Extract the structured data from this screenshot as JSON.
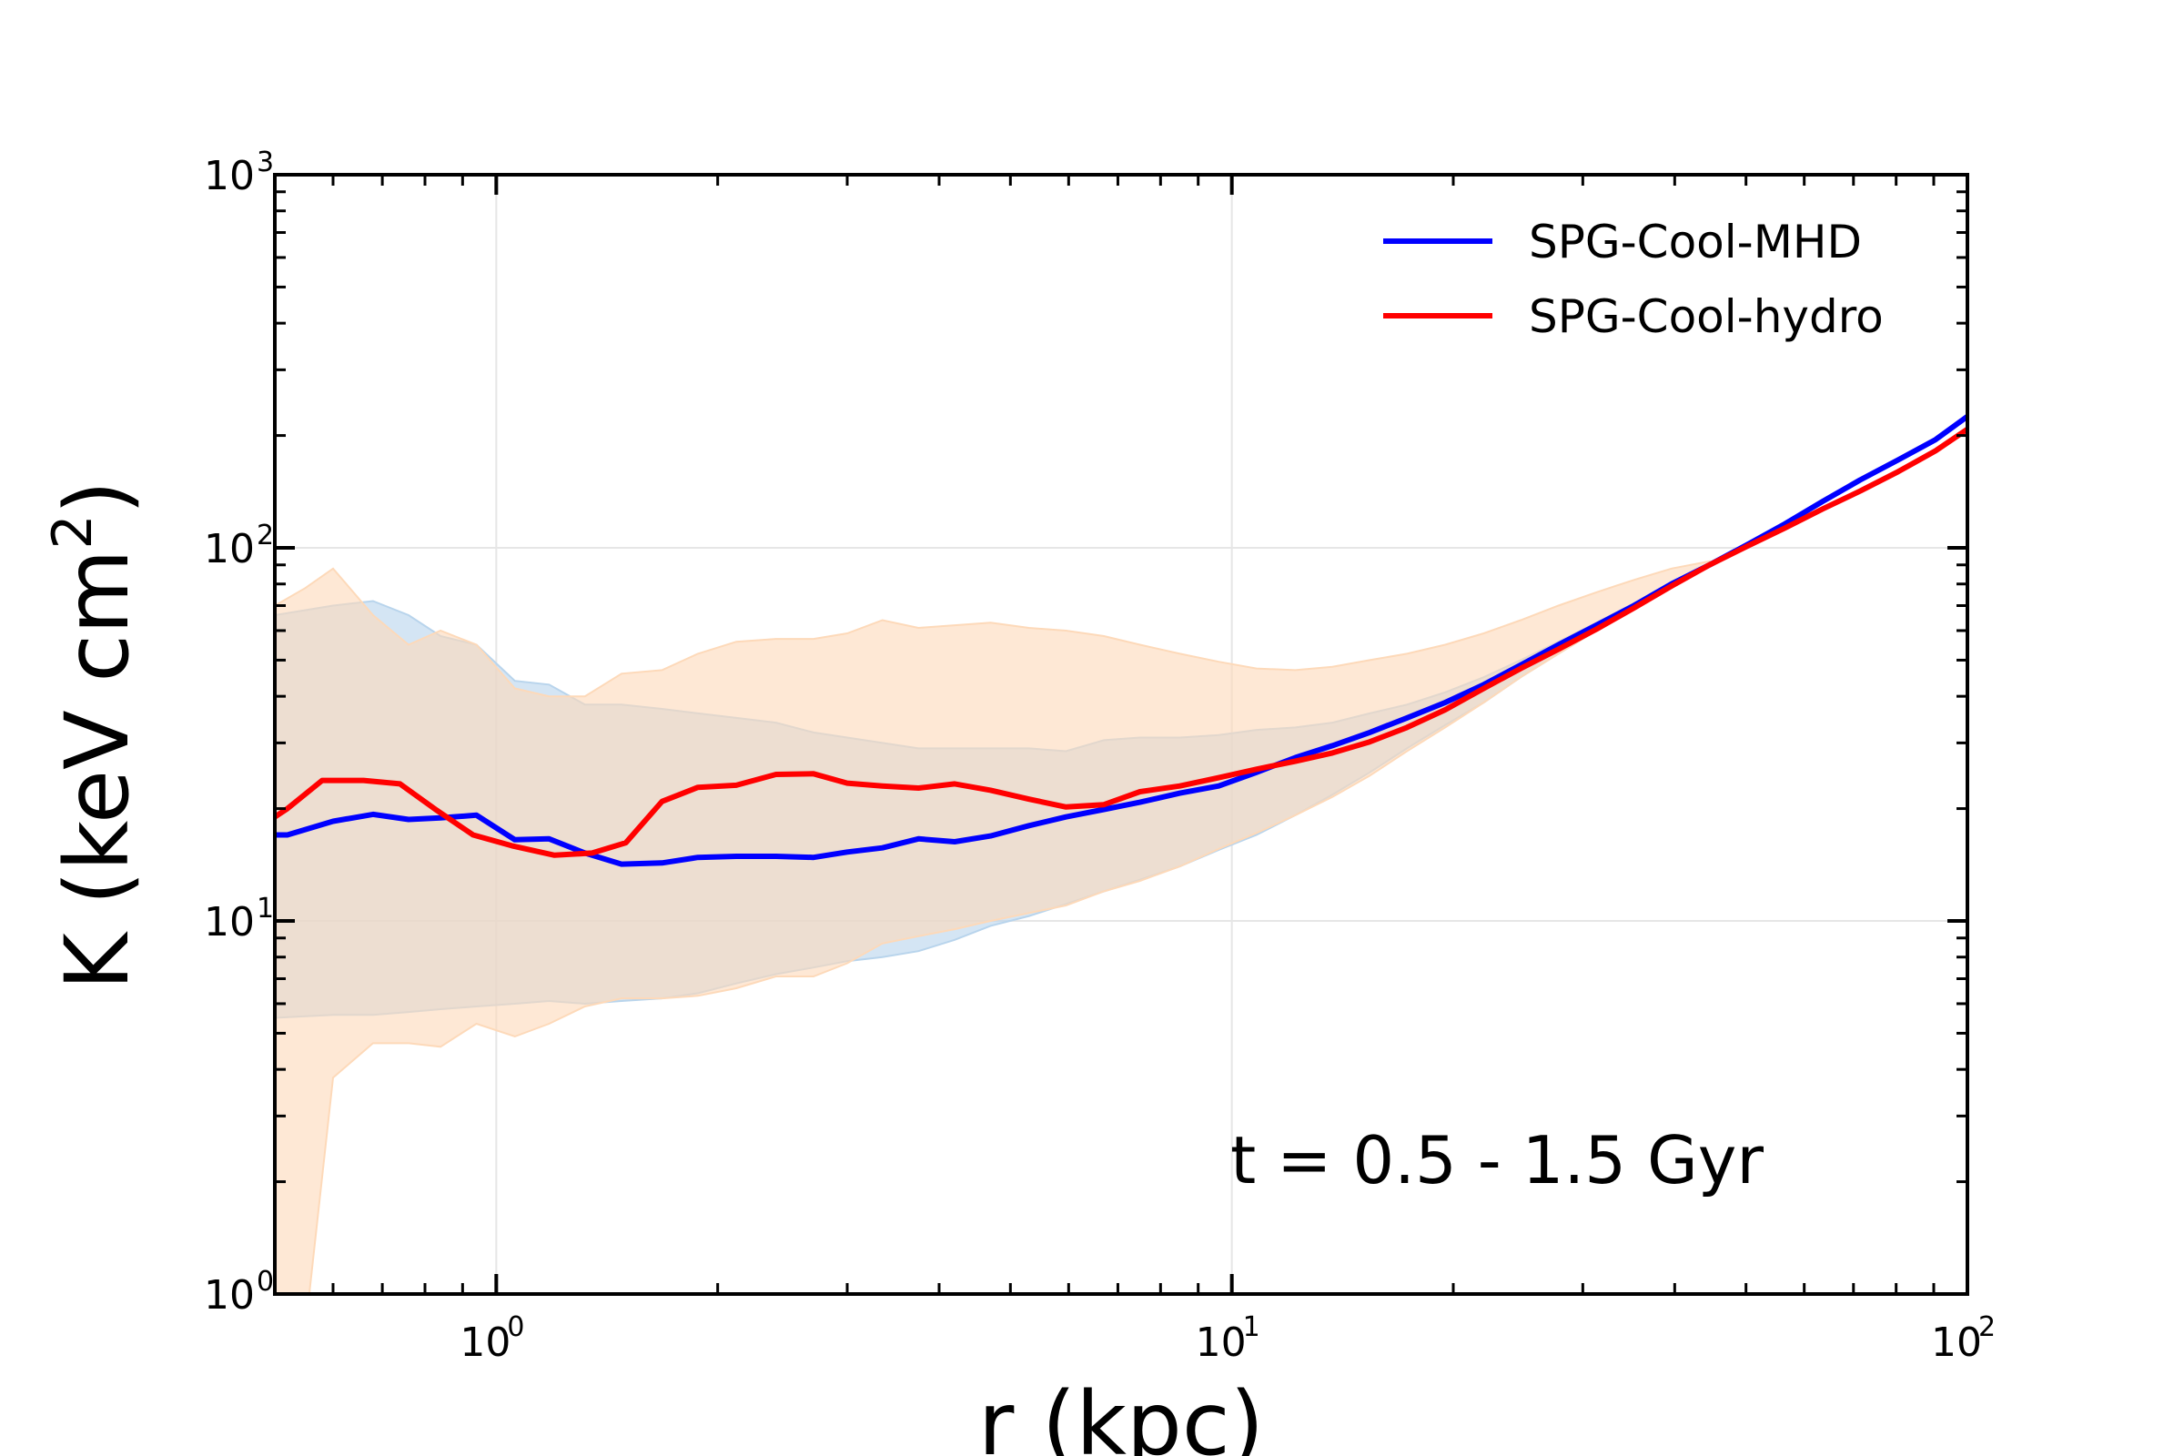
{
  "chart_data": {
    "type": "line",
    "xscale": "log",
    "yscale": "log",
    "xlim": [
      0.5,
      100
    ],
    "ylim": [
      1,
      1000
    ],
    "xlabel": "r (kpc)",
    "ylabel": "K (keV cm²)",
    "ylabel_parts": {
      "main": "K (keV cm",
      "exp": "2",
      "tail": ")"
    },
    "grid": true,
    "legend_position": "top-right",
    "annotation": "t = 0.5 - 1.5 Gyr",
    "x_ticks": [
      {
        "value": 1,
        "base": "10",
        "exp": "0"
      },
      {
        "value": 10,
        "base": "10",
        "exp": "1"
      },
      {
        "value": 100,
        "base": "10",
        "exp": "2"
      }
    ],
    "y_ticks": [
      {
        "value": 1,
        "base": "10",
        "exp": "0"
      },
      {
        "value": 10,
        "base": "10",
        "exp": "1"
      },
      {
        "value": 100,
        "base": "10",
        "exp": "2"
      },
      {
        "value": 1000,
        "base": "10",
        "exp": "3"
      }
    ],
    "series": [
      {
        "name": "SPG-Cool-MHD",
        "color": "#0000ff",
        "x": [
          0.5,
          0.52,
          0.6,
          0.68,
          0.76,
          0.84,
          0.94,
          1.06,
          1.18,
          1.32,
          1.48,
          1.68,
          1.88,
          2.12,
          2.4,
          2.7,
          3.0,
          3.35,
          3.75,
          4.2,
          4.7,
          5.3,
          5.95,
          6.7,
          7.5,
          8.5,
          9.6,
          10.8,
          12.2,
          13.7,
          15.4,
          17.3,
          19.5,
          22,
          24.7,
          27.8,
          31.3,
          35.2,
          39.6,
          44.6,
          50.2,
          56.5,
          63.5,
          71.5,
          80.5,
          90.5,
          100
        ],
        "values": [
          17,
          17,
          18.5,
          19.3,
          18.7,
          18.9,
          19.2,
          16.5,
          16.6,
          15.2,
          14.2,
          14.3,
          14.8,
          14.9,
          14.9,
          14.8,
          15.3,
          15.7,
          16.6,
          16.3,
          16.9,
          18.0,
          19.0,
          19.9,
          20.8,
          22.0,
          23.0,
          25.0,
          27.4,
          29.5,
          32,
          35,
          38.5,
          43,
          48.5,
          55,
          62,
          70,
          80,
          90,
          102,
          116,
          133,
          152,
          172,
          195,
          225
        ]
      },
      {
        "name": "SPG-Cool-hydro",
        "color": "#ff0000",
        "x": [
          0.5,
          0.52,
          0.58,
          0.66,
          0.74,
          0.83,
          0.93,
          1.05,
          1.2,
          1.35,
          1.5,
          1.68,
          1.88,
          2.12,
          2.4,
          2.7,
          3.0,
          3.35,
          3.75,
          4.2,
          4.7,
          5.3,
          5.95,
          6.7,
          7.5,
          8.5,
          9.6,
          10.8,
          12.2,
          13.7,
          15.4,
          17.3,
          19.5,
          22,
          24.7,
          27.8,
          31.3,
          35.2,
          39.6,
          44.6,
          50.2,
          56.5,
          63.5,
          71.5,
          80.5,
          90.5,
          100
        ],
        "values": [
          19,
          20,
          23.8,
          23.8,
          23.3,
          19.8,
          17,
          15.9,
          15.0,
          15.2,
          16.2,
          20.9,
          22.8,
          23.1,
          24.7,
          24.8,
          23.4,
          23.0,
          22.7,
          23.3,
          22.4,
          21.2,
          20.2,
          20.5,
          22.2,
          23.0,
          24.2,
          25.5,
          26.8,
          28.2,
          30.2,
          33,
          36.8,
          42,
          47.5,
          53.5,
          60.5,
          69,
          79,
          90,
          101,
          113,
          127,
          142,
          160,
          182,
          208
        ]
      }
    ],
    "bands": [
      {
        "name": "SPG-Cool-MHD range",
        "color": "#b8d4ec",
        "x": [
          0.5,
          0.6,
          0.68,
          0.76,
          0.84,
          0.94,
          1.06,
          1.18,
          1.32,
          1.48,
          1.68,
          1.88,
          2.12,
          2.4,
          2.7,
          3.0,
          3.35,
          3.75,
          4.2,
          4.7,
          5.3,
          5.95,
          6.7,
          7.5,
          8.5,
          9.6,
          10.8,
          12.2,
          13.7,
          15.4,
          17.3,
          19.5,
          22,
          24.7,
          27.8,
          31.3,
          35.2,
          39.6,
          44.6
        ],
        "lower": [
          5.5,
          5.6,
          5.6,
          5.7,
          5.8,
          5.9,
          6.0,
          6.1,
          6.0,
          6.1,
          6.2,
          6.4,
          6.8,
          7.2,
          7.5,
          7.8,
          8.0,
          8.3,
          8.9,
          9.7,
          10.3,
          11.1,
          12.0,
          12.9,
          14.0,
          15.5,
          17.0,
          19.2,
          21.8,
          25,
          29,
          33.5,
          38.5,
          45,
          52,
          60,
          69,
          79,
          90
        ],
        "upper": [
          66,
          70,
          72,
          66,
          58,
          55,
          44,
          43,
          38,
          38,
          37,
          36,
          35,
          34,
          32,
          31,
          30,
          29,
          29,
          29,
          29,
          28.5,
          30.5,
          31,
          31,
          31.5,
          32.5,
          33,
          34,
          36,
          38,
          41,
          45,
          50,
          56,
          63,
          71,
          81,
          91
        ]
      },
      {
        "name": "SPG-Cool-hydro range",
        "color": "#fdd9b9",
        "x": [
          0.5,
          0.55,
          0.6,
          0.68,
          0.76,
          0.84,
          0.94,
          1.06,
          1.18,
          1.32,
          1.48,
          1.68,
          1.88,
          2.12,
          2.4,
          2.7,
          3.0,
          3.35,
          3.75,
          4.2,
          4.7,
          5.3,
          5.95,
          6.7,
          7.5,
          8.5,
          9.6,
          10.8,
          12.2,
          13.7,
          15.4,
          17.3,
          19.5,
          22,
          24.7,
          27.8,
          31.3,
          35.2,
          39.6,
          44.6
        ],
        "lower": [
          0.8,
          0.8,
          3.8,
          4.7,
          4.7,
          4.6,
          5.3,
          4.9,
          5.3,
          5.9,
          6.2,
          6.2,
          6.3,
          6.6,
          7.1,
          7.1,
          7.7,
          8.7,
          9.1,
          9.5,
          10.0,
          10.5,
          11.0,
          12.0,
          12.8,
          14.0,
          15.6,
          17.2,
          19.2,
          21.5,
          24.5,
          28.5,
          33,
          38.5,
          45,
          52,
          60,
          69,
          79,
          90
        ],
        "upper": [
          70,
          78,
          88,
          66,
          55,
          60,
          55,
          42,
          40,
          40,
          46,
          47,
          52,
          56,
          57,
          57,
          59,
          64,
          61,
          62,
          63,
          61,
          60,
          58,
          55,
          52,
          49.5,
          47.5,
          47,
          48,
          50,
          52,
          55,
          59,
          64,
          70,
          76,
          82,
          88,
          92
        ]
      }
    ]
  }
}
